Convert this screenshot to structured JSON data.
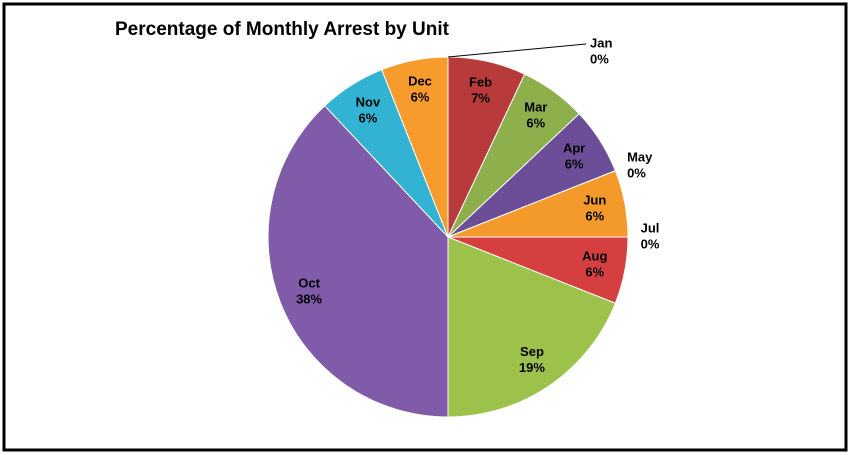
{
  "chart_data": {
    "type": "pie",
    "title": "Percentage of Monthly Arrest by Unit",
    "categories": [
      "Jan",
      "Feb",
      "Mar",
      "Apr",
      "May",
      "Jun",
      "Jul",
      "Aug",
      "Sep",
      "Oct",
      "Nov",
      "Dec"
    ],
    "values": [
      0,
      7,
      6,
      6,
      0,
      6,
      0,
      6,
      19,
      38,
      6,
      6
    ],
    "value_labels": [
      "0%",
      "7%",
      "6%",
      "6%",
      "0%",
      "6%",
      "0%",
      "6%",
      "19%",
      "38%",
      "6%",
      "6%"
    ],
    "colors": [
      "#4f81bd",
      "#b93a3a",
      "#8eb04c",
      "#6b4e97",
      "#2fb1d1",
      "#f49a2b",
      "#4f81bd",
      "#d63f3f",
      "#9dc24c",
      "#7f5ba9",
      "#33b3d3",
      "#f69b2c"
    ]
  }
}
